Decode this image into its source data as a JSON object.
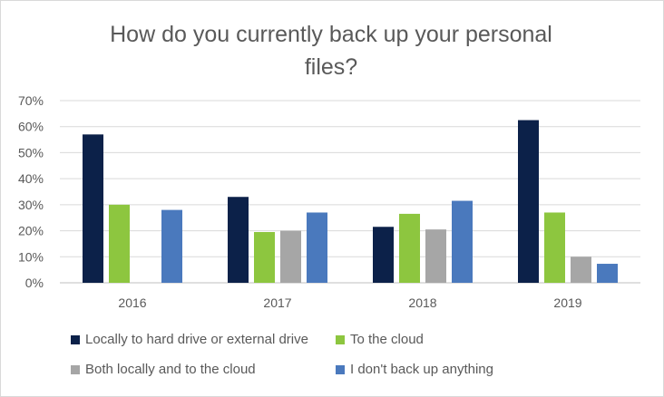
{
  "chart_data": {
    "type": "bar",
    "title": "How do you currently back up your personal files?",
    "title_lines": [
      "How do you currently back up your personal",
      "files?"
    ],
    "categories": [
      "2016",
      "2017",
      "2018",
      "2019"
    ],
    "series": [
      {
        "name": "Locally to hard drive or external drive",
        "color": "#0c2149",
        "values": [
          0.57,
          0.33,
          0.215,
          0.625
        ]
      },
      {
        "name": "To the cloud",
        "color": "#8dc63f",
        "values": [
          0.3,
          0.195,
          0.265,
          0.27
        ]
      },
      {
        "name": "Both locally and to the cloud",
        "color": "#a6a6a6",
        "values": [
          null,
          0.2,
          0.205,
          0.1
        ]
      },
      {
        "name": "I don't back up anything",
        "color": "#4a79bd",
        "values": [
          0.28,
          0.27,
          0.315,
          0.073
        ]
      }
    ],
    "ylim": [
      0,
      0.7
    ],
    "yticks": [
      "0%",
      "10%",
      "20%",
      "30%",
      "40%",
      "50%",
      "60%",
      "70%"
    ],
    "xlabel": "",
    "ylabel": "",
    "grid": true,
    "legend_position": "bottom"
  }
}
